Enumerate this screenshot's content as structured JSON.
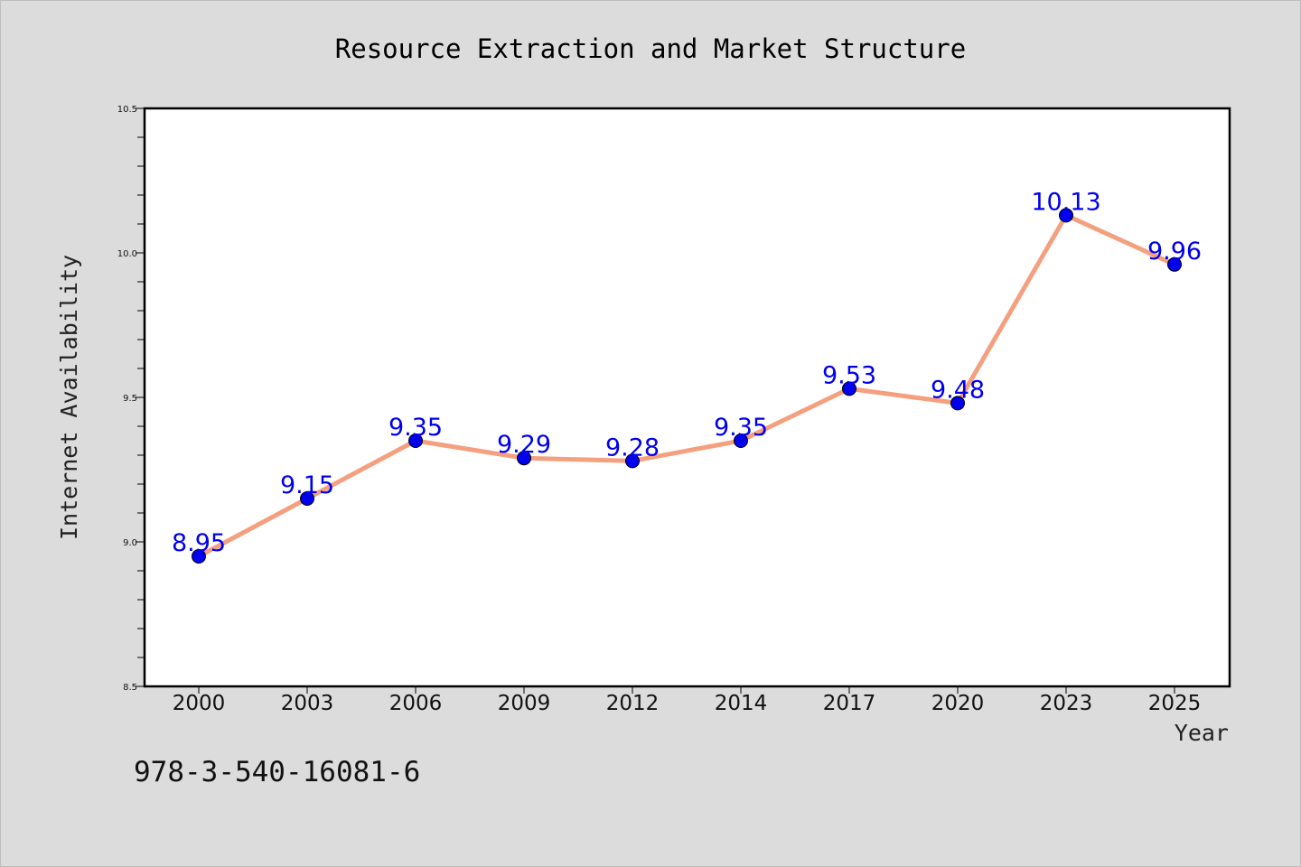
{
  "chart_data": {
    "type": "line",
    "title": "Resource Extraction and Market Structure",
    "xlabel": "Year",
    "ylabel": "Internet Availability",
    "categories": [
      "2000",
      "2003",
      "2006",
      "2009",
      "2012",
      "2014",
      "2017",
      "2020",
      "2023",
      "2025"
    ],
    "series": [
      {
        "values": [
          8.95,
          9.15,
          9.35,
          9.29,
          9.28,
          9.35,
          9.53,
          9.48,
          10.13,
          9.96
        ],
        "data_labels": [
          "8.95",
          "9.15",
          "9.35",
          "9.29",
          "9.28",
          "9.35",
          "9.53",
          "9.48",
          "10.13",
          "9.96"
        ],
        "line_color": "#f4a07f",
        "marker_color": "#0000ee",
        "label_color": "#0000ee"
      }
    ],
    "ylim": [
      8.5,
      10.5
    ],
    "yticks": [
      "8.5",
      "9.0",
      "9.5",
      "10.0",
      "10.5"
    ],
    "grid": false,
    "legend": "none",
    "background_color": "#dcdcdc",
    "plot_background_color": "#ffffff"
  },
  "footnote": "978-3-540-16081-6"
}
